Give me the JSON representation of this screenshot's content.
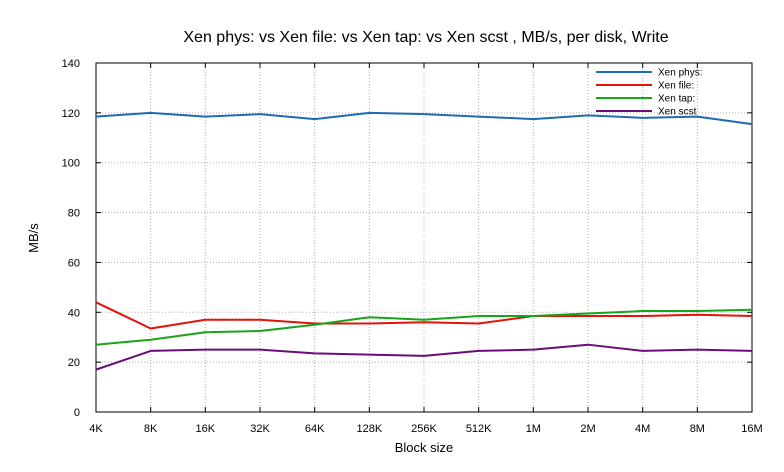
{
  "chart_data": {
    "type": "line",
    "title": "Xen phys: vs Xen file: vs Xen tap: vs Xen scst , MB/s, per disk, Write",
    "xlabel": "Block size",
    "ylabel": "MB/s",
    "categories": [
      "4K",
      "8K",
      "16K",
      "32K",
      "64K",
      "128K",
      "256K",
      "512K",
      "1M",
      "2M",
      "4M",
      "8M",
      "16M"
    ],
    "ylim": [
      0,
      140
    ],
    "yticks": [
      0,
      20,
      40,
      60,
      80,
      100,
      120,
      140
    ],
    "grid": true,
    "legend_position": "top-right",
    "series": [
      {
        "name": "Xen phys:",
        "color": "#1f6ab5",
        "values": [
          118.5,
          120,
          118.5,
          119.5,
          117.5,
          120,
          119.5,
          118.5,
          117.5,
          119,
          118,
          118.5,
          115.5
        ]
      },
      {
        "name": "Xen file:",
        "color": "#e3120b",
        "values": [
          44,
          33.5,
          37,
          37,
          35.5,
          35.5,
          36,
          35.5,
          38.5,
          38.5,
          38.5,
          39,
          38.5
        ]
      },
      {
        "name": "Xen tap:",
        "color": "#18a418",
        "values": [
          27,
          29,
          32,
          32.5,
          35,
          38,
          37,
          38.5,
          38.5,
          39.5,
          40.5,
          40.5,
          41
        ]
      },
      {
        "name": "Xen scst",
        "color": "#6a0d7a",
        "values": [
          17,
          24.5,
          25,
          25,
          23.5,
          23,
          22.5,
          24.5,
          25,
          27,
          24.5,
          25,
          24.5
        ]
      }
    ]
  }
}
